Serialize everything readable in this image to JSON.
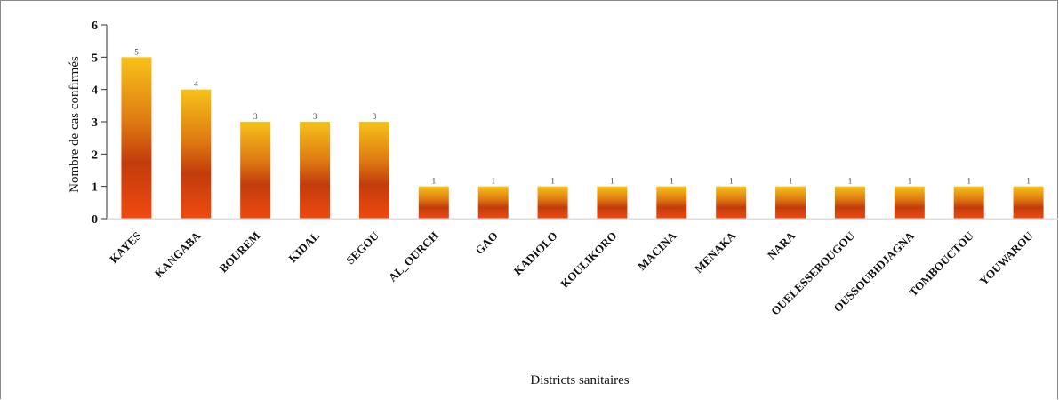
{
  "chart_data": {
    "type": "bar",
    "categories": [
      "KAYES",
      "KANGABA",
      "BOUREM",
      "KIDAL",
      "SEGOU",
      "AL_OURCH",
      "GAO",
      "KADIOLO",
      "KOULIKORO",
      "MACINA",
      "MENAKA",
      "NARA",
      "OUELESSEBOUGOU",
      "OUSSOUBIDJAGNA",
      "TOMBOUCTOU",
      "YOUWAROU"
    ],
    "values": [
      5,
      4,
      3,
      3,
      3,
      1,
      1,
      1,
      1,
      1,
      1,
      1,
      1,
      1,
      1,
      1
    ],
    "value_labels": [
      "5",
      "4",
      "3",
      "3",
      "3",
      "1",
      "1",
      "1",
      "1",
      "1",
      "1",
      "1",
      "1",
      "1",
      "1",
      "1"
    ],
    "title": "",
    "xlabel": "Districts sanitaires",
    "ylabel": "Nombre de cas confirmés",
    "ylim": [
      0,
      6
    ],
    "yticks": [
      "0",
      "1",
      "2",
      "3",
      "4",
      "5",
      "6"
    ],
    "grid": false,
    "legend": "none",
    "colors": {
      "bar_top": "#f7c21a",
      "bar_mid": "#c7420e",
      "bar_bottom": "#f04a10",
      "axis": "#333333"
    }
  }
}
